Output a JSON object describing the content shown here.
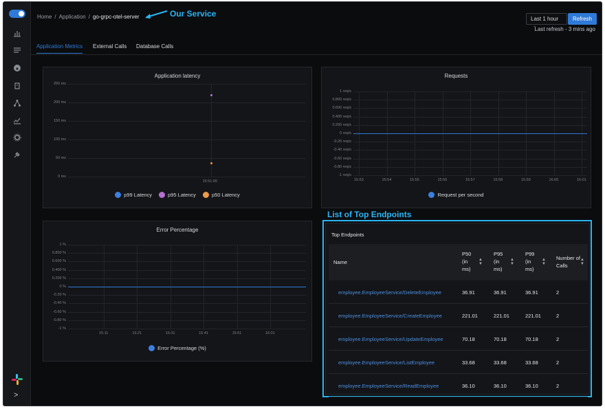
{
  "breadcrumb": {
    "home": "Home",
    "sep1": "/",
    "application": "Application",
    "sep2": "/",
    "current": "go-grpc-otel-server"
  },
  "annotations": {
    "service": "Our Service",
    "endpoints": "List of Top Endpoints"
  },
  "toolbar": {
    "time_range": "Last 1 hour",
    "refresh_label": "Refresh",
    "last_refresh": "Last refresh - 3 mins ago"
  },
  "tabs": [
    {
      "label": "Application Metrics",
      "active": true
    },
    {
      "label": "External Calls",
      "active": false
    },
    {
      "label": "Database Calls",
      "active": false
    }
  ],
  "colors": {
    "accent": "#2f7ad8",
    "annotation": "#29b6f6",
    "p99": "#3b7fe0",
    "p95": "#b46fd2",
    "p50": "#ee9a48"
  },
  "sidebar_icons": [
    "bar-chart-icon",
    "list-icon",
    "dashboard-icon",
    "alert-icon",
    "service-map-icon",
    "line-chart-icon",
    "settings-icon",
    "plug-icon"
  ],
  "chart_data": [
    {
      "type": "scatter",
      "title": "Application latency",
      "y_ticks": [
        "250 ms",
        "200 ms",
        "150 ms",
        "100 ms",
        "50 ms",
        "0 ms"
      ],
      "ylim": [
        0,
        250
      ],
      "x_ticks": [
        "15:51:00"
      ],
      "series": [
        {
          "name": "p99 Latency",
          "values": [
            221.01
          ]
        },
        {
          "name": "p95 Latency",
          "values": [
            221.01
          ]
        },
        {
          "name": "p50 Latency",
          "values": [
            36.91
          ]
        }
      ]
    },
    {
      "type": "line",
      "title": "Requests",
      "y_ticks": [
        "1 req/s",
        "0.800 req/s",
        "0.600 req/s",
        "0.400 req/s",
        "0.200 req/s",
        "0 req/s",
        "-0.20 req/s",
        "-0.40 req/s",
        "-0.60 req/s",
        "-0.80 req/s",
        "-1 req/s"
      ],
      "ylim": [
        -1,
        1
      ],
      "x_ticks": [
        "15:53",
        "15:54",
        "15:55",
        "15:56",
        "15:57",
        "15:58",
        "15:59",
        "16:00",
        "16:01"
      ],
      "series": [
        {
          "name": "Request per second",
          "values": [
            0,
            0,
            0,
            0,
            0,
            0,
            0,
            0,
            0
          ]
        }
      ]
    },
    {
      "type": "line",
      "title": "Error Percentage",
      "y_ticks": [
        "1 %",
        "0.800 %",
        "0.600 %",
        "0.400 %",
        "0.200 %",
        "0 %",
        "-0.20 %",
        "-0.40 %",
        "-0.60 %",
        "-0.80 %",
        "-1 %"
      ],
      "ylim": [
        -1,
        1
      ],
      "x_ticks": [
        "15:11",
        "15:21",
        "15:31",
        "15:41",
        "15:51",
        "16:01"
      ],
      "series": [
        {
          "name": "Error Percentage (%)",
          "values": [
            0,
            0,
            0,
            0,
            0,
            0
          ]
        }
      ]
    }
  ],
  "endpoints": {
    "title": "Top Endpoints",
    "headers": {
      "name": "Name",
      "p50": "P50 (in ms)",
      "p95": "P95 (in ms)",
      "p99": "P99 (in ms)",
      "calls": "Number of Calls"
    },
    "rows": [
      {
        "name": "employee.EmployeeService/DeleteEmployee",
        "p50": "36.91",
        "p95": "36.91",
        "p99": "36.91",
        "calls": "2"
      },
      {
        "name": "employee.EmployeeService/CreateEmployee",
        "p50": "221.01",
        "p95": "221.01",
        "p99": "221.01",
        "calls": "2"
      },
      {
        "name": "employee.EmployeeService/UpdateEmployee",
        "p50": "70.18",
        "p95": "70.18",
        "p99": "70.18",
        "calls": "2"
      },
      {
        "name": "employee.EmployeeService/ListEmployee",
        "p50": "33.68",
        "p95": "33.68",
        "p99": "33.68",
        "calls": "2"
      },
      {
        "name": "employee.EmployeeService/ReadEmployee",
        "p50": "36.10",
        "p95": "36.10",
        "p99": "36.10",
        "calls": "2"
      }
    ]
  }
}
